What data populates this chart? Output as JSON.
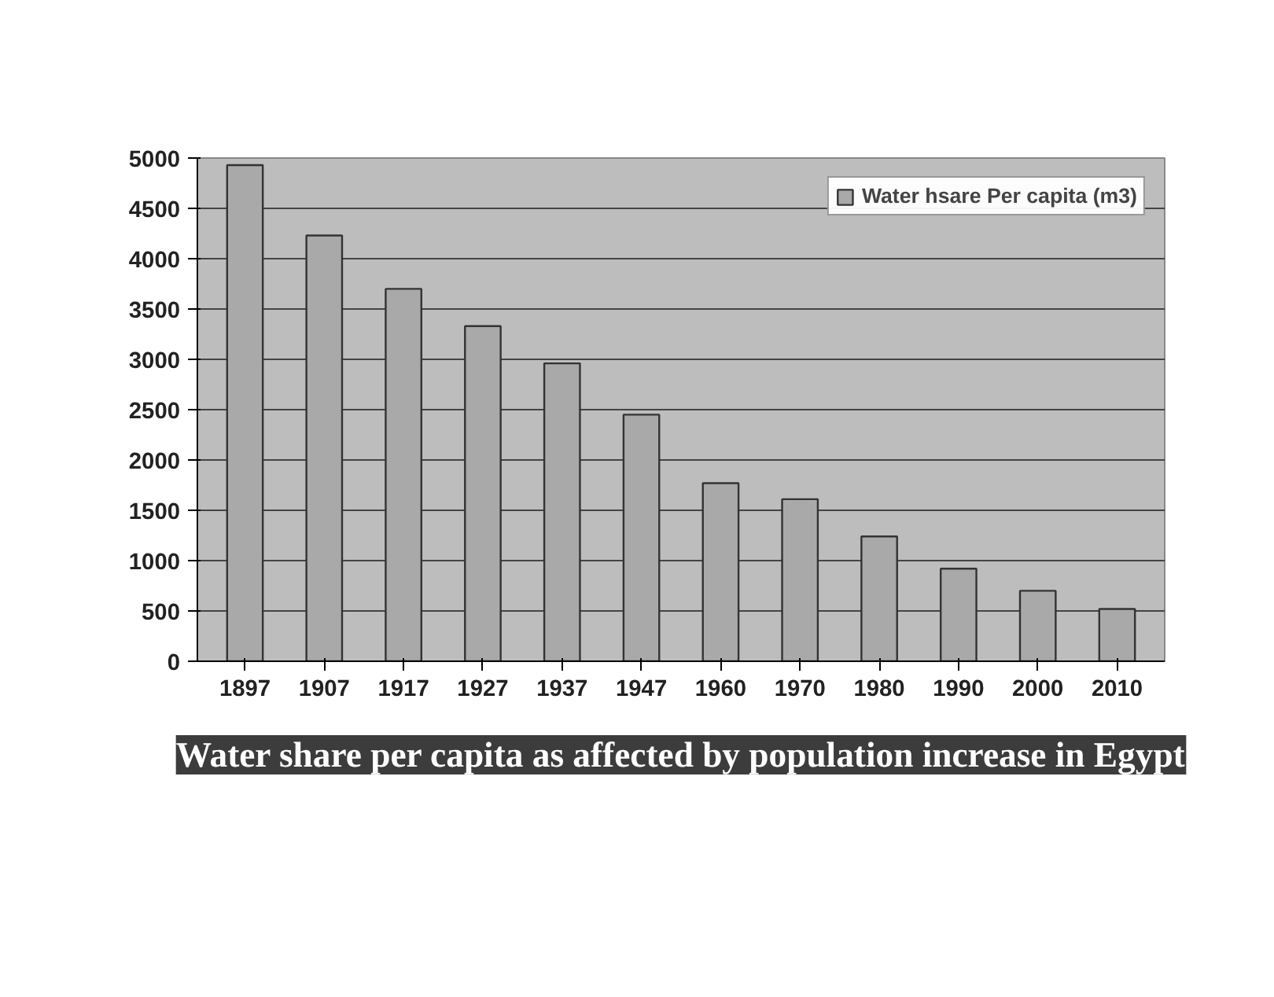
{
  "chart_data": {
    "type": "bar",
    "title": "Water share per capita as affected by population increase in Egypt",
    "categories": [
      "1897",
      "1907",
      "1917",
      "1927",
      "1937",
      "1947",
      "1960",
      "1970",
      "1980",
      "1990",
      "2000",
      "2010"
    ],
    "series": [
      {
        "name": "Water hsare Per capita (m3)",
        "color": "#a9a9a9",
        "values": [
          4930,
          4230,
          3700,
          3330,
          2960,
          2450,
          1770,
          1610,
          1240,
          920,
          700,
          520
        ]
      }
    ],
    "ylim": [
      0,
      5000
    ],
    "yticks": [
      0,
      500,
      1000,
      1500,
      2000,
      2500,
      3000,
      3500,
      4000,
      4500,
      5000
    ],
    "grid": "y",
    "legend": "top right"
  }
}
